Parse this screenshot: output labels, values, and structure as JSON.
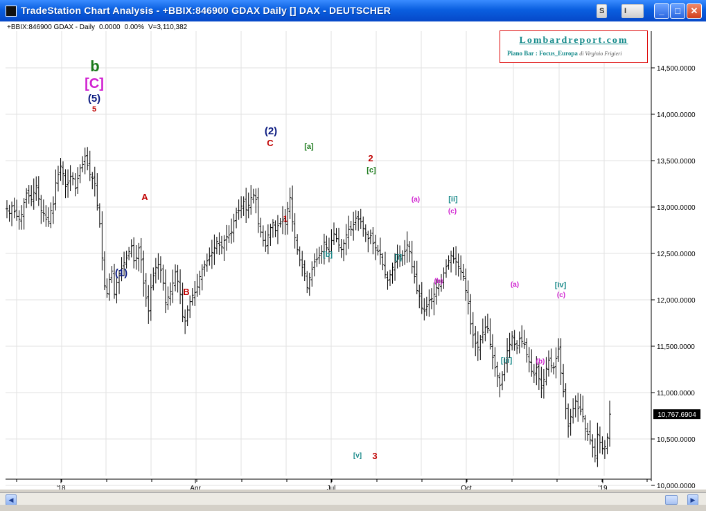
{
  "window": {
    "title": "TradeStation Chart Analysis  -  +BBIX:846900 GDAX Daily [] DAX  -  DEUTSCHER",
    "buttons": {
      "s": "S",
      "i": "I",
      "minimize": "_",
      "maximize": "□",
      "close": "✕"
    }
  },
  "header": {
    "symbol": "+BBIX:846900 GDAX - Daily",
    "change": "0.0000",
    "change_pct": "0.00%",
    "volume": "V=3,110,382"
  },
  "logo": {
    "title": "Lombardreport.com",
    "subtitle": "Piano Bar : Focus_Europa",
    "author": "di Virginio Frigieri"
  },
  "last_price": "10,767.6904",
  "colors": {
    "red": "#c00000",
    "navy": "#0a1a80",
    "green": "#1a7a1a",
    "magenta": "#d020d0",
    "teal": "#1a8a8a"
  },
  "chart_data": {
    "type": "ohlc-bar",
    "ylim": [
      9950,
      14650
    ],
    "y_ticks": [
      "14,500.0000",
      "14,000.0000",
      "13,500.0000",
      "13,000.0000",
      "12,500.0000",
      "12,000.0000",
      "11,500.0000",
      "11,000.0000",
      "10,500.0000",
      "10,000.0000"
    ],
    "x_ticks": [
      "'18",
      "Apr",
      "Jul",
      "Oct",
      "'19"
    ],
    "closes": [
      12980,
      12930,
      13010,
      12950,
      12900,
      12870,
      12920,
      13050,
      13150,
      13120,
      13080,
      13160,
      13230,
      13090,
      12960,
      12930,
      12870,
      12840,
      12960,
      13030,
      13260,
      13350,
      13440,
      13360,
      13220,
      13260,
      13330,
      13310,
      13200,
      13310,
      13420,
      13460,
      13550,
      13450,
      13350,
      13310,
      13250,
      13020,
      12820,
      12450,
      12150,
      12070,
      12220,
      12310,
      12060,
      12190,
      12280,
      12340,
      12400,
      12450,
      12520,
      12580,
      12420,
      12450,
      12560,
      12430,
      12180,
      12020,
      11880,
      12130,
      12260,
      12350,
      12380,
      12320,
      12180,
      11970,
      12030,
      12090,
      12180,
      12300,
      12200,
      12060,
      11820,
      11770,
      11890,
      11980,
      12050,
      12080,
      12140,
      12250,
      12330,
      12380,
      12420,
      12470,
      12510,
      12560,
      12630,
      12590,
      12570,
      12640,
      12680,
      12700,
      12730,
      12850,
      12940,
      12960,
      13010,
      13060,
      12970,
      13020,
      13100,
      13130,
      13080,
      12820,
      12730,
      12640,
      12580,
      12700,
      12780,
      12830,
      12750,
      12800,
      12820,
      12860,
      12840,
      12980,
      13100,
      12840,
      12670,
      12540,
      12430,
      12350,
      12280,
      12130,
      12240,
      12330,
      12410,
      12440,
      12480,
      12520,
      12620,
      12560,
      12520,
      12640,
      12710,
      12660,
      12590,
      12540,
      12610,
      12700,
      12760,
      12760,
      12810,
      12880,
      12870,
      12840,
      12770,
      12720,
      12660,
      12690,
      12610,
      12560,
      12520,
      12490,
      12380,
      12270,
      12210,
      12270,
      12350,
      12400,
      12450,
      12470,
      12480,
      12520,
      12590,
      12520,
      12360,
      12250,
      12100,
      12040,
      11910,
      11880,
      11930,
      11990,
      12010,
      12060,
      12130,
      12160,
      12210,
      12290,
      12360,
      12420,
      12480,
      12440,
      12410,
      12360,
      12310,
      12250,
      12100,
      11960,
      11740,
      11620,
      11530,
      11490,
      11570,
      11650,
      11700,
      11690,
      11520,
      11380,
      11270,
      11180,
      11080,
      11190,
      11320,
      11450,
      11520,
      11610,
      11520,
      11480,
      11580,
      11550,
      11520,
      11410,
      11330,
      11230,
      11190,
      11270,
      11150,
      11050,
      11140,
      11260,
      11350,
      11290,
      11270,
      11370,
      11470,
      11210,
      11010,
      10830,
      10640,
      10740,
      10830,
      10910,
      10830,
      10800,
      10740,
      10610,
      10550,
      10490,
      10410,
      10320,
      10550,
      10460,
      10400,
      10420,
      10520,
      10767.69
    ]
  },
  "annotations": [
    {
      "text": "b",
      "color": "green",
      "size": 22
    },
    {
      "text": "[C]",
      "color": "magenta",
      "size": 20
    },
    {
      "text": "(5)",
      "color": "navy",
      "size": 15
    },
    {
      "text": "5",
      "color": "red",
      "size": 11
    },
    {
      "text": "(1)",
      "color": "navy",
      "size": 15
    },
    {
      "text": "A",
      "color": "red",
      "size": 13
    },
    {
      "text": "B",
      "color": "red",
      "size": 13
    },
    {
      "text": "(2)",
      "color": "navy",
      "size": 15
    },
    {
      "text": "C",
      "color": "red",
      "size": 13
    },
    {
      "text": "1",
      "color": "red",
      "size": 12
    },
    {
      "text": "[a]",
      "color": "green",
      "size": 11
    },
    {
      "text": "[b]",
      "color": "teal",
      "size": 11
    },
    {
      "text": "2",
      "color": "red",
      "size": 13
    },
    {
      "text": "[c]",
      "color": "green",
      "size": 11
    },
    {
      "text": "[i]",
      "color": "teal",
      "size": 11
    },
    {
      "text": "(a)",
      "color": "magenta",
      "size": 10
    },
    {
      "text": "(b)",
      "color": "magenta",
      "size": 10
    },
    {
      "text": "[ii]",
      "color": "teal",
      "size": 11
    },
    {
      "text": "(c)",
      "color": "magenta",
      "size": 10
    },
    {
      "text": "[v]",
      "color": "teal",
      "size": 10
    },
    {
      "text": "3",
      "color": "red",
      "size": 13
    },
    {
      "text": "(a)",
      "color": "magenta",
      "size": 10
    },
    {
      "text": "[iii]",
      "color": "teal",
      "size": 11
    },
    {
      "text": "(b)",
      "color": "magenta",
      "size": 10
    },
    {
      "text": "[iv]",
      "color": "teal",
      "size": 11
    },
    {
      "text": "(c)",
      "color": "magenta",
      "size": 10
    }
  ]
}
